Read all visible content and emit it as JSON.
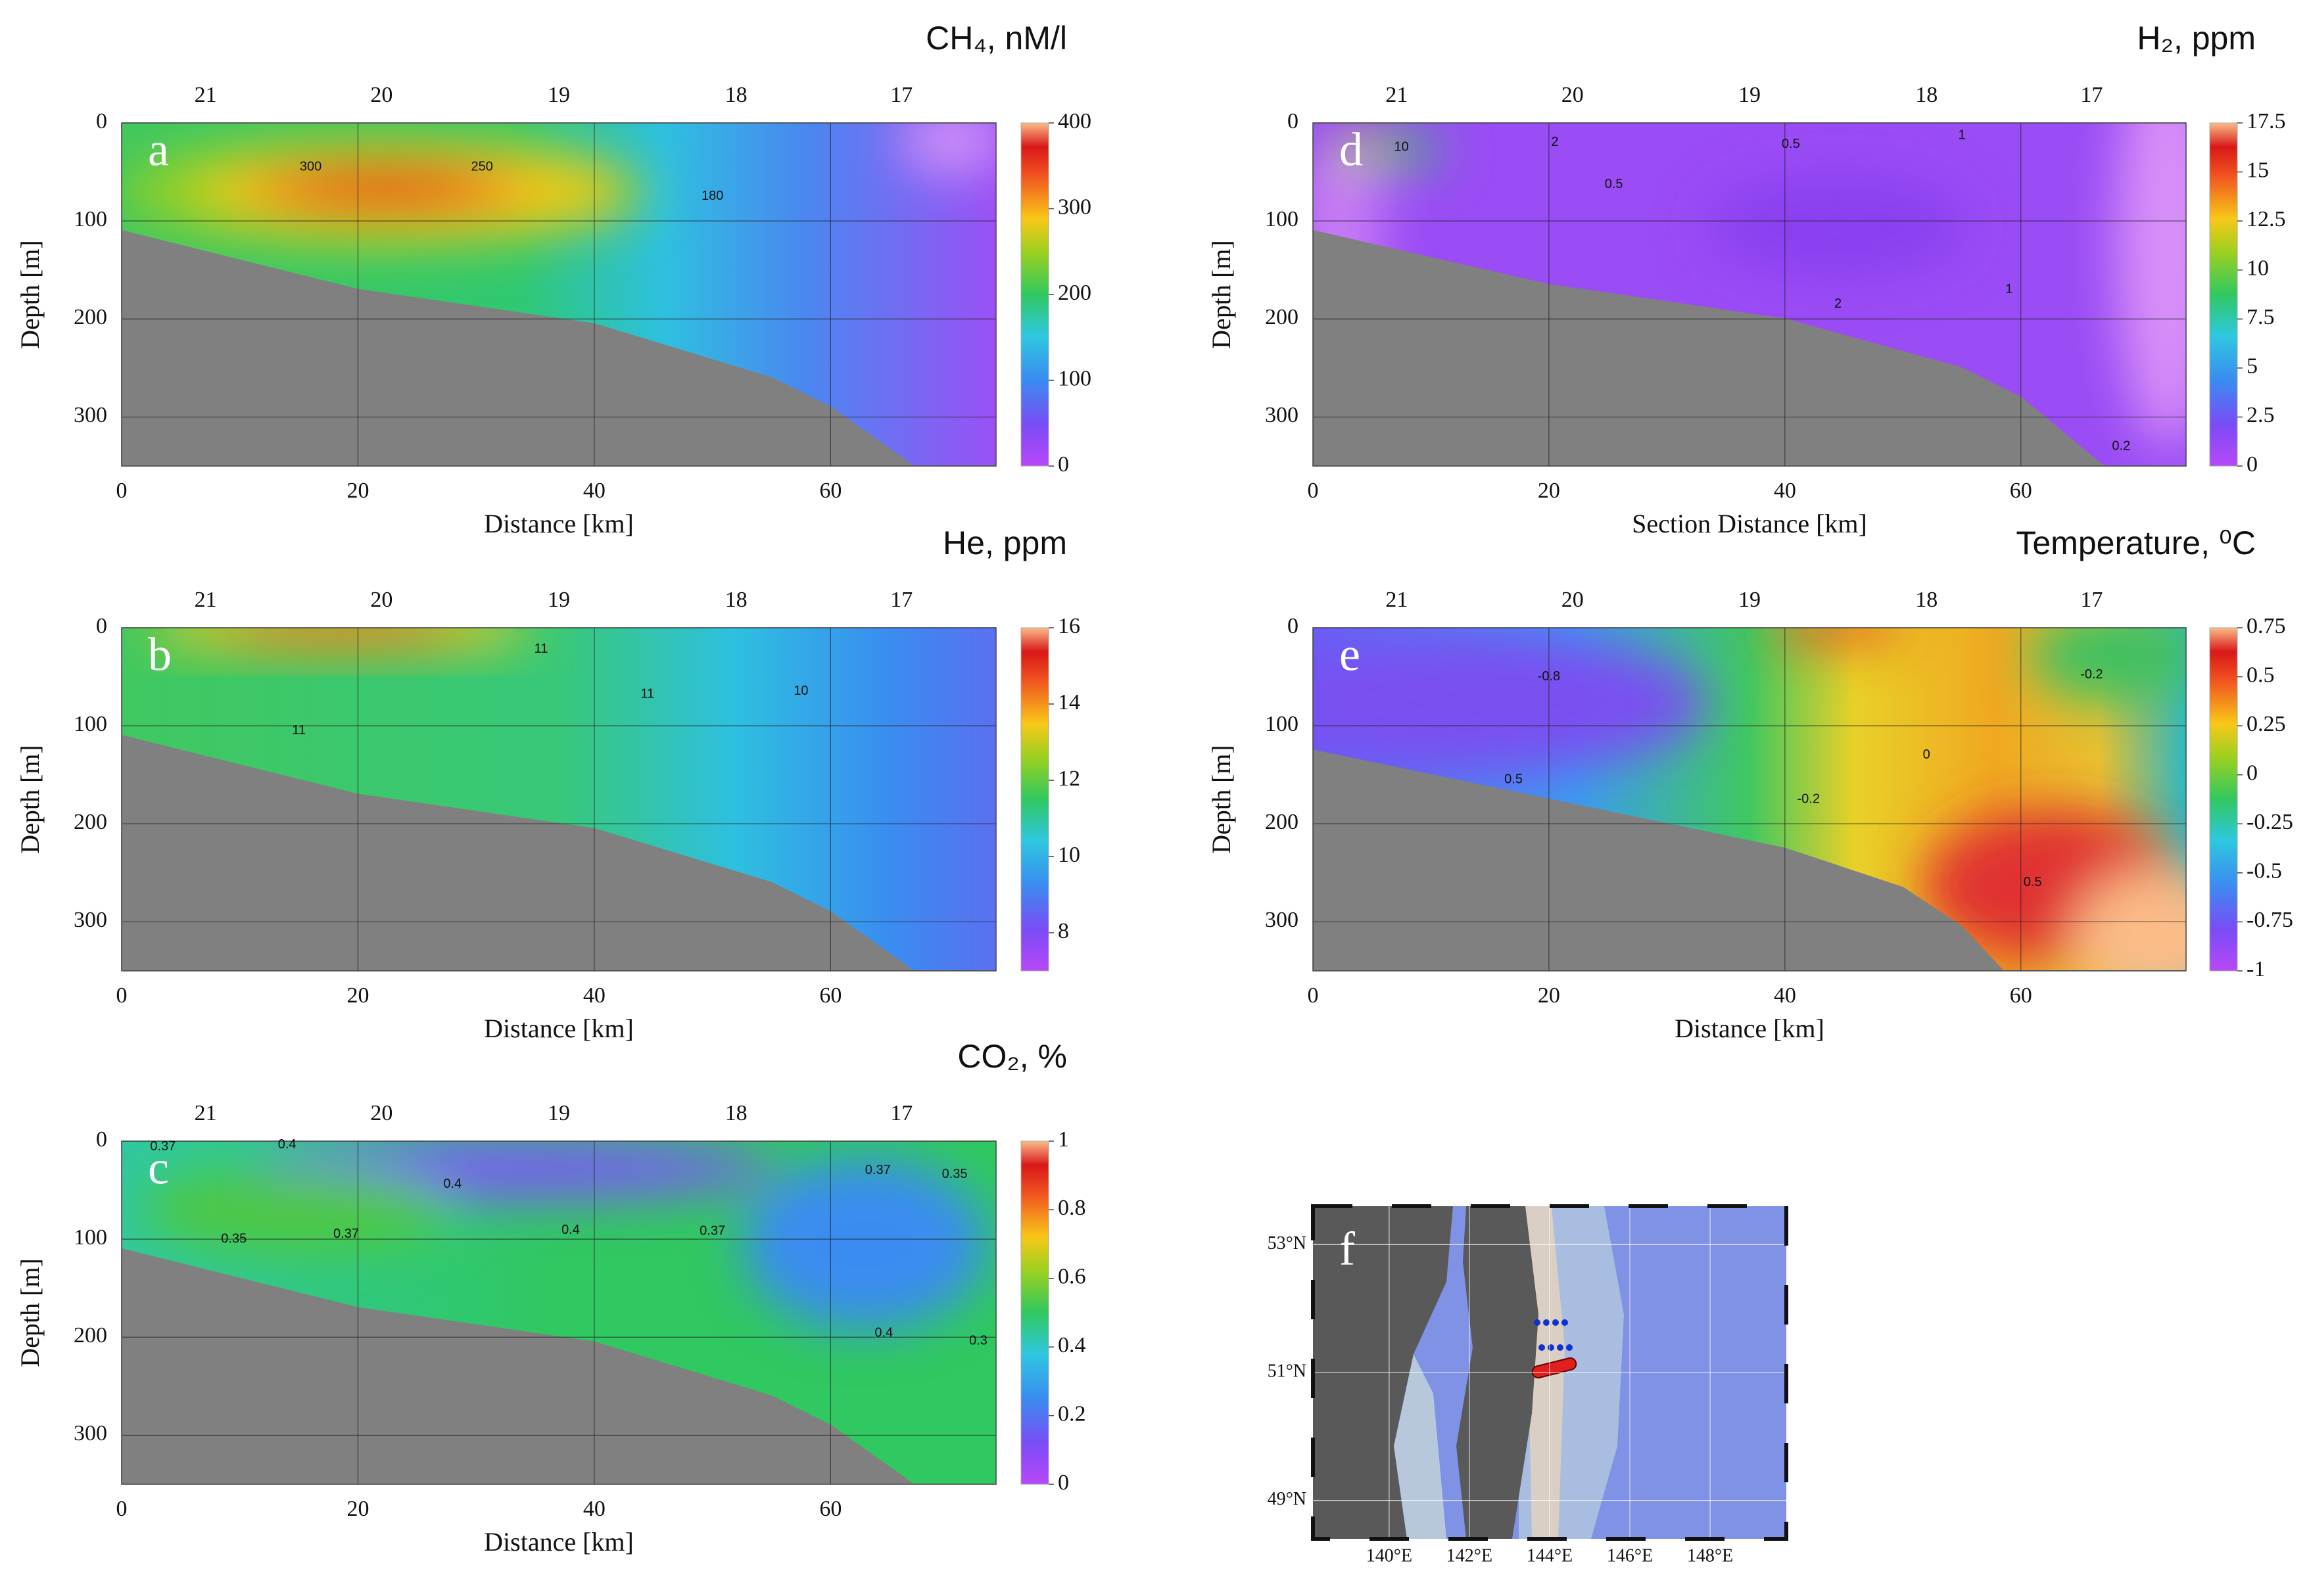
{
  "chart_data": [
    {
      "type": "contour",
      "panel": "a",
      "title": "CH₄, nM/l",
      "xlabel": "Distance [km]",
      "ylabel": "Depth [m]",
      "xlim": [
        0,
        74
      ],
      "ylim": [
        0,
        350
      ],
      "xticks": [
        0,
        20,
        40,
        60
      ],
      "yticks": [
        0,
        100,
        200,
        300
      ],
      "grid": true,
      "stations": {
        "labels": [
          21,
          20,
          19,
          18,
          17
        ],
        "x": [
          7.1,
          22,
          37,
          52,
          66
        ]
      },
      "seafloor": {
        "x": [
          0,
          20,
          40,
          55,
          60,
          67,
          74
        ],
        "depth": [
          110,
          170,
          205,
          260,
          290,
          350,
          350
        ]
      },
      "clim": [
        0,
        400
      ],
      "cticks": [
        0,
        100,
        200,
        300,
        400
      ],
      "contour_labels": [
        {
          "text": "300",
          "x": 16,
          "depth": 45
        },
        {
          "text": "250",
          "x": 30.5,
          "depth": 45
        },
        {
          "text": "180",
          "x": 50,
          "depth": 75
        }
      ]
    },
    {
      "type": "contour",
      "panel": "b",
      "title": "He, ppm",
      "xlabel": "Distance [km]",
      "ylabel": "Depth [m]",
      "xlim": [
        0,
        74
      ],
      "ylim": [
        0,
        350
      ],
      "xticks": [
        0,
        20,
        40,
        60
      ],
      "yticks": [
        0,
        100,
        200,
        300
      ],
      "grid": true,
      "stations": {
        "labels": [
          21,
          20,
          19,
          18,
          17
        ],
        "x": [
          7.1,
          22,
          37,
          52,
          66
        ]
      },
      "seafloor": {
        "x": [
          0,
          20,
          40,
          55,
          60,
          67,
          74
        ],
        "depth": [
          110,
          170,
          205,
          260,
          290,
          350,
          350
        ]
      },
      "clim": [
        7,
        16
      ],
      "cticks": [
        8,
        10,
        12,
        14,
        16
      ],
      "contour_labels": [
        {
          "text": "11",
          "x": 35.5,
          "depth": 22
        },
        {
          "text": "11",
          "x": 44.5,
          "depth": 68
        },
        {
          "text": "10",
          "x": 57.5,
          "depth": 65
        },
        {
          "text": "11",
          "x": 15,
          "depth": 105
        }
      ]
    },
    {
      "type": "contour",
      "panel": "c",
      "title": "CO₂, %",
      "xlabel": "Distance [km]",
      "ylabel": "Depth [m]",
      "xlim": [
        0,
        74
      ],
      "ylim": [
        0,
        350
      ],
      "xticks": [
        0,
        20,
        40,
        60
      ],
      "yticks": [
        0,
        100,
        200,
        300
      ],
      "grid": true,
      "stations": {
        "labels": [
          21,
          20,
          19,
          18,
          17
        ],
        "x": [
          7.1,
          22,
          37,
          52,
          66
        ]
      },
      "seafloor": {
        "x": [
          0,
          20,
          40,
          55,
          60,
          67,
          74
        ],
        "depth": [
          110,
          170,
          205,
          260,
          290,
          350,
          350
        ]
      },
      "clim": [
        0,
        1
      ],
      "cticks": [
        0,
        0.2,
        0.4,
        0.6,
        0.8,
        1
      ],
      "contour_labels": [
        {
          "text": "0.37",
          "x": 3.5,
          "depth": 6
        },
        {
          "text": "0.4",
          "x": 14,
          "depth": 4
        },
        {
          "text": "0.4",
          "x": 28,
          "depth": 44
        },
        {
          "text": "0.37",
          "x": 19,
          "depth": 95
        },
        {
          "text": "0.35",
          "x": 9.5,
          "depth": 100
        },
        {
          "text": "0.4",
          "x": 38,
          "depth": 91
        },
        {
          "text": "0.37",
          "x": 50,
          "depth": 92
        },
        {
          "text": "0.37",
          "x": 64,
          "depth": 30
        },
        {
          "text": "0.35",
          "x": 70.5,
          "depth": 34
        },
        {
          "text": "0.4",
          "x": 64.5,
          "depth": 196
        },
        {
          "text": "0.3",
          "x": 72.5,
          "depth": 204
        }
      ]
    },
    {
      "type": "contour",
      "panel": "d",
      "title": "H₂, ppm",
      "xlabel": "Section Distance [km]",
      "ylabel": "Depth [m]",
      "xlim": [
        0,
        74
      ],
      "ylim": [
        0,
        350
      ],
      "xticks": [
        0,
        20,
        40,
        60
      ],
      "yticks": [
        0,
        100,
        200,
        300
      ],
      "grid": true,
      "stations": {
        "labels": [
          21,
          20,
          19,
          18,
          17
        ],
        "x": [
          7.1,
          22,
          37,
          52,
          66
        ]
      },
      "seafloor": {
        "x": [
          0,
          20,
          40,
          55,
          60,
          67,
          74
        ],
        "depth": [
          110,
          165,
          200,
          250,
          280,
          350,
          350
        ]
      },
      "clim": [
        0,
        17.5
      ],
      "cticks": [
        0,
        2.5,
        5,
        7.5,
        10,
        12.5,
        15,
        17.5
      ],
      "contour_labels": [
        {
          "text": "10",
          "x": 7.5,
          "depth": 25
        },
        {
          "text": "2",
          "x": 20.5,
          "depth": 20
        },
        {
          "text": "0.5",
          "x": 40.5,
          "depth": 22
        },
        {
          "text": "0.5",
          "x": 25.5,
          "depth": 63
        },
        {
          "text": "1",
          "x": 55,
          "depth": 13
        },
        {
          "text": "1",
          "x": 59,
          "depth": 170
        },
        {
          "text": "2",
          "x": 44.5,
          "depth": 185
        },
        {
          "text": "0.2",
          "x": 68.5,
          "depth": 330
        }
      ]
    },
    {
      "type": "contour",
      "panel": "e",
      "title": "Temperature, ⁰C",
      "xlabel": "Distance [km]",
      "ylabel": "Depth [m]",
      "xlim": [
        0,
        74
      ],
      "ylim": [
        0,
        350
      ],
      "xticks": [
        0,
        20,
        40,
        60
      ],
      "yticks": [
        0,
        100,
        200,
        300
      ],
      "grid": true,
      "stations": {
        "labels": [
          21,
          20,
          19,
          18,
          17
        ],
        "x": [
          7.1,
          22,
          37,
          52,
          66
        ]
      },
      "seafloor": {
        "x": [
          0,
          20,
          40,
          50,
          55,
          58.5,
          74
        ],
        "depth": [
          125,
          175,
          225,
          265,
          305,
          350,
          350
        ]
      },
      "clim": [
        -1,
        0.75
      ],
      "cticks": [
        -1,
        -0.75,
        -0.5,
        -0.25,
        0,
        0.25,
        0.5,
        0.75
      ],
      "contour_labels": [
        {
          "text": "-0.8",
          "x": 20,
          "depth": 50
        },
        {
          "text": "0.5",
          "x": 17,
          "depth": 155
        },
        {
          "text": "-0.2",
          "x": 42,
          "depth": 175
        },
        {
          "text": "0",
          "x": 52,
          "depth": 130
        },
        {
          "text": "0.5",
          "x": 61,
          "depth": 260
        },
        {
          "text": "-0.2",
          "x": 66,
          "depth": 48
        }
      ]
    }
  ],
  "map": {
    "panel": "f",
    "xlim": [
      138.1,
      149.9
    ],
    "ylim": [
      48.4,
      53.6
    ],
    "lat_ticks": [
      {
        "value": 53,
        "label": "53°N"
      },
      {
        "value": 51,
        "label": "51°N"
      },
      {
        "value": 49,
        "label": "49°N"
      }
    ],
    "lon_ticks": [
      {
        "value": 140,
        "label": "140°E"
      },
      {
        "value": 142,
        "label": "142°E"
      },
      {
        "value": 144,
        "label": "144°E"
      },
      {
        "value": 146,
        "label": "146°E"
      },
      {
        "value": 148,
        "label": "148°E"
      }
    ]
  }
}
